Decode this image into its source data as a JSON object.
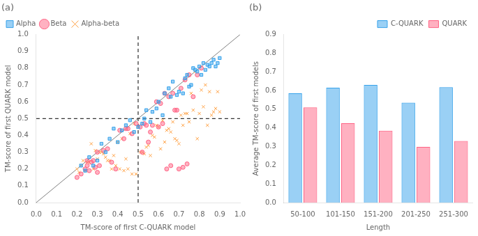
{
  "chart_data": [
    {
      "type": "scatter",
      "annotation": "(a)",
      "xlabel": "TM-score of first C-QUARK model",
      "ylabel": "TM-score of first QUARK model",
      "xlim": [
        0.0,
        1.0
      ],
      "ylim": [
        0.0,
        1.0
      ],
      "xticks": [
        {
          "value": 0.0,
          "label": "0.0"
        },
        0.1,
        0.2,
        0.3,
        0.4,
        0.5,
        0.6,
        0.7,
        0.8,
        0.9,
        {
          "value": 1.0,
          "label": "1.0"
        }
      ],
      "yticks": [
        {
          "value": 0.0,
          "label": "0.0"
        },
        0.1,
        0.2,
        0.3,
        0.4,
        0.5,
        0.6,
        0.7,
        0.8,
        0.9,
        {
          "value": 1.0,
          "label": "1.0"
        }
      ],
      "grid": false,
      "legend": "upper left",
      "series": [
        {
          "name": "Alpha",
          "marker": "square",
          "x": [
            0.52,
            0.54,
            0.57,
            0.6,
            0.62,
            0.65,
            0.67,
            0.7,
            0.72,
            0.73,
            0.74,
            0.75,
            0.76,
            0.77,
            0.78,
            0.79,
            0.8,
            0.81,
            0.82,
            0.83,
            0.84,
            0.85,
            0.86,
            0.87,
            0.88,
            0.89,
            0.9,
            0.22,
            0.24,
            0.26,
            0.28,
            0.3,
            0.32,
            0.34,
            0.36,
            0.38,
            0.4,
            0.42,
            0.44,
            0.46,
            0.48,
            0.5,
            0.53,
            0.56,
            0.59,
            0.63,
            0.66,
            0.69
          ],
          "values": [
            0.47,
            0.55,
            0.54,
            0.6,
            0.52,
            0.68,
            0.72,
            0.66,
            0.65,
            0.74,
            0.76,
            0.69,
            0.7,
            0.8,
            0.79,
            0.78,
            0.81,
            0.76,
            0.83,
            0.79,
            0.82,
            0.81,
            0.83,
            0.85,
            0.81,
            0.83,
            0.86,
            0.22,
            0.19,
            0.27,
            0.22,
            0.25,
            0.35,
            0.3,
            0.38,
            0.44,
            0.36,
            0.43,
            0.46,
            0.49,
            0.42,
            0.45,
            0.5,
            0.48,
            0.56,
            0.65,
            0.63,
            0.64
          ]
        },
        {
          "name": "Beta",
          "marker": "circle",
          "x": [
            0.2,
            0.22,
            0.24,
            0.25,
            0.26,
            0.27,
            0.28,
            0.29,
            0.3,
            0.31,
            0.33,
            0.35,
            0.37,
            0.39,
            0.41,
            0.43,
            0.45,
            0.47,
            0.49,
            0.51,
            0.53,
            0.55,
            0.57,
            0.59,
            0.61,
            0.63,
            0.65,
            0.67,
            0.69,
            0.71,
            0.73,
            0.75,
            0.77,
            0.79,
            0.81,
            0.25,
            0.3,
            0.44,
            0.52,
            0.54,
            0.56,
            0.6,
            0.62,
            0.64,
            0.66,
            0.68,
            0.7,
            0.72,
            0.74
          ],
          "values": [
            0.15,
            0.17,
            0.2,
            0.22,
            0.19,
            0.24,
            0.25,
            0.21,
            0.18,
            0.22,
            0.31,
            0.32,
            0.24,
            0.2,
            0.43,
            0.38,
            0.44,
            0.41,
            0.47,
            0.45,
            0.47,
            0.36,
            0.46,
            0.6,
            0.59,
            0.65,
            0.63,
            0.65,
            0.55,
            0.68,
            0.73,
            0.76,
            0.63,
            0.76,
            0.8,
            0.25,
            0.3,
            0.44,
            0.3,
            0.46,
            0.42,
            0.45,
            0.47,
            0.2,
            0.22,
            0.55,
            0.2,
            0.21,
            0.23
          ]
        },
        {
          "name": "Alpha-beta",
          "marker": "cross",
          "x": [
            0.2,
            0.22,
            0.24,
            0.26,
            0.28,
            0.3,
            0.32,
            0.34,
            0.36,
            0.38,
            0.4,
            0.42,
            0.44,
            0.46,
            0.48,
            0.5,
            0.52,
            0.54,
            0.56,
            0.58,
            0.6,
            0.62,
            0.64,
            0.66,
            0.68,
            0.7,
            0.72,
            0.74,
            0.76,
            0.78,
            0.8,
            0.82,
            0.84,
            0.86,
            0.88,
            0.9,
            0.21,
            0.23,
            0.25,
            0.27,
            0.29,
            0.31,
            0.33,
            0.35,
            0.37,
            0.39,
            0.41,
            0.43,
            0.45,
            0.47,
            0.49,
            0.51,
            0.53,
            0.55,
            0.57,
            0.59,
            0.61,
            0.63,
            0.65,
            0.67,
            0.69,
            0.71,
            0.73,
            0.75,
            0.77,
            0.79,
            0.81,
            0.83,
            0.85,
            0.87,
            0.89
          ],
          "values": [
            0.2,
            0.22,
            0.19,
            0.24,
            0.2,
            0.26,
            0.3,
            0.27,
            0.25,
            0.28,
            0.36,
            0.38,
            0.26,
            0.41,
            0.47,
            0.45,
            0.3,
            0.33,
            0.28,
            0.39,
            0.45,
            0.49,
            0.43,
            0.42,
            0.38,
            0.35,
            0.46,
            0.53,
            0.65,
            0.78,
            0.53,
            0.57,
            0.46,
            0.52,
            0.56,
            0.54,
            0.18,
            0.25,
            0.24,
            0.35,
            0.31,
            0.3,
            0.29,
            0.25,
            0.2,
            0.22,
            0.2,
            0.19,
            0.2,
            0.17,
            0.17,
            0.3,
            0.29,
            0.34,
            0.4,
            0.46,
            0.32,
            0.36,
            0.44,
            0.48,
            0.37,
            0.52,
            0.53,
            0.48,
            0.55,
            0.38,
            0.67,
            0.7,
            0.66,
            0.54,
            0.66
          ]
        }
      ],
      "reference_lines": [
        {
          "x": [
            0,
            1
          ],
          "y": [
            0,
            1
          ],
          "color": "gray"
        },
        {
          "x": 0.5,
          "color": "black",
          "line_style": "dashed"
        },
        {
          "y": 0.5,
          "color": "black",
          "line_style": "dashed"
        }
      ]
    },
    {
      "type": "bar",
      "annotation": "(b)",
      "xlabel": "Length",
      "ylabel": "Average TM-score of first models",
      "categories": [
        "50-100",
        "101-150",
        "151-200",
        "201-250",
        "251-300"
      ],
      "ylim": [
        0.0,
        0.9
      ],
      "yticks": [
        {
          "value": 0.0,
          "label": "0.0"
        },
        0.1,
        0.2,
        0.3,
        0.4,
        0.5,
        0.6,
        0.7,
        0.8,
        0.9
      ],
      "grid": false,
      "legend": "upper right",
      "series": [
        {
          "name": "C-QUARK",
          "values": [
            0.585,
            0.615,
            0.63,
            0.535,
            0.618
          ]
        },
        {
          "name": "QUARK",
          "values": [
            0.51,
            0.425,
            0.385,
            0.298,
            0.33
          ]
        }
      ]
    }
  ]
}
